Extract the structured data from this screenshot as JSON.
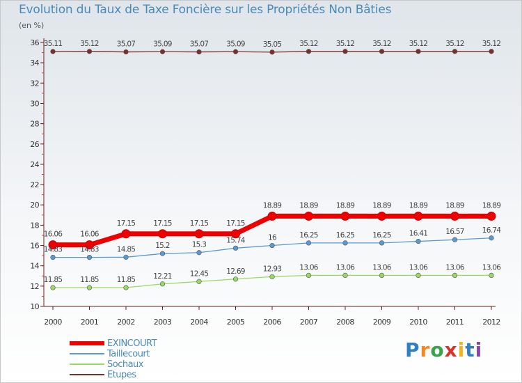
{
  "header": {
    "title": "Evolution du Taux de Taxe Foncière sur les Propriétés Non Bâties",
    "unit": "(en %)"
  },
  "chart_data": {
    "type": "line",
    "title": "Evolution du Taux de Taxe Foncière sur les Propriétés Non Bâties",
    "ylabel": "(en %)",
    "xlabel": "",
    "ylim": [
      10,
      36
    ],
    "y_ticks": [
      "10",
      "12",
      "14",
      "16",
      "18",
      "20",
      "22",
      "24",
      "26",
      "28",
      "30",
      "32",
      "34",
      "36"
    ],
    "categories": [
      "2000",
      "2001",
      "2002",
      "2003",
      "2004",
      "2005",
      "2006",
      "2007",
      "2008",
      "2009",
      "2010",
      "2011",
      "2012"
    ],
    "series": [
      {
        "name": "EXINCOURT",
        "color": "#ee0000",
        "values": [
          16.06,
          16.06,
          17.15,
          17.15,
          17.15,
          17.15,
          18.89,
          18.89,
          18.89,
          18.89,
          18.89,
          18.89,
          18.89
        ],
        "labels": [
          "16.06",
          "16.06",
          "17.15",
          "17.15",
          "17.15",
          "17.15",
          "18.89",
          "18.89",
          "18.89",
          "18.89",
          "18.89",
          "18.89",
          "18.89"
        ]
      },
      {
        "name": "Taillecourt",
        "color": "#5b9ad0",
        "values": [
          14.83,
          14.83,
          14.85,
          15.2,
          15.3,
          15.74,
          16,
          16.25,
          16.25,
          16.25,
          16.41,
          16.57,
          16.74
        ],
        "labels": [
          "14.83",
          "14.83",
          "14.85",
          "15.2",
          "15.3",
          "15.74",
          "16",
          "16.25",
          "16.25",
          "16.25",
          "16.41",
          "16.57",
          "16.74"
        ]
      },
      {
        "name": "Sochaux",
        "color": "#99d966",
        "values": [
          11.85,
          11.85,
          11.85,
          12.21,
          12.45,
          12.69,
          12.93,
          13.06,
          13.06,
          13.06,
          13.06,
          13.06,
          13.06
        ],
        "labels": [
          "11.85",
          "11.85",
          "11.85",
          "12.21",
          "12.45",
          "12.69",
          "12.93",
          "13.06",
          "13.06",
          "13.06",
          "13.06",
          "13.06",
          "13.06"
        ]
      },
      {
        "name": "Etupes",
        "color": "#7a2e2e",
        "values": [
          35.11,
          35.12,
          35.07,
          35.09,
          35.07,
          35.09,
          35.05,
          35.12,
          35.12,
          35.12,
          35.12,
          35.12,
          35.12
        ],
        "labels": [
          "35.11",
          "35.12",
          "35.07",
          "35.09",
          "35.07",
          "35.09",
          "35.05",
          "35.12",
          "35.12",
          "35.12",
          "35.12",
          "35.12",
          "35.12"
        ]
      }
    ],
    "legend": [
      "EXINCOURT",
      "Taillecourt",
      "Sochaux",
      "Etupes"
    ],
    "legend_position": "bottom-left",
    "grid": false
  },
  "brand": {
    "letters": [
      "P",
      "r",
      "o",
      "x",
      "i",
      "t",
      "i"
    ],
    "colors": [
      "#2f7fc4",
      "#f08a24",
      "#3aa24b",
      "#d8322a",
      "#f2b21a",
      "#2f7fc4",
      "#8e44ad"
    ]
  }
}
